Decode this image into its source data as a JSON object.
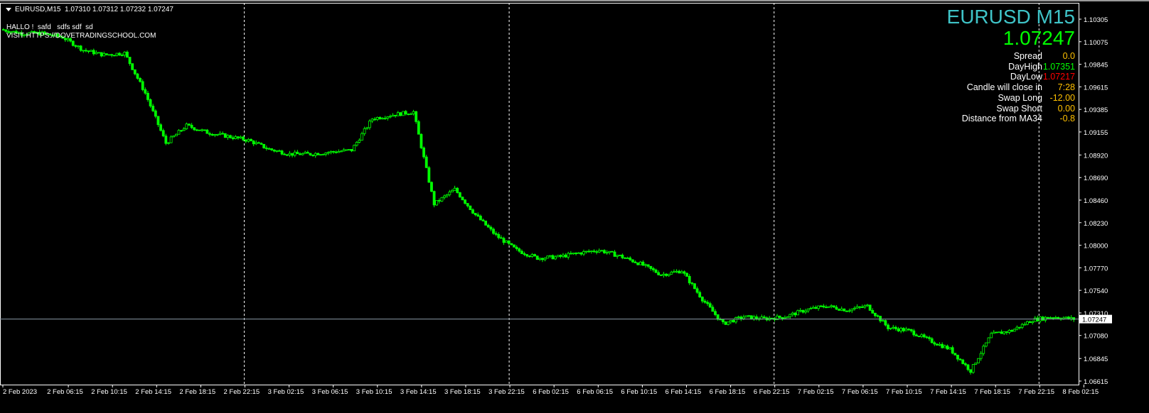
{
  "header": {
    "symbol_timeframe": "EURUSD,M15",
    "open": "1.07310",
    "high": "1.07312",
    "low": "1.07232",
    "close": "1.07247"
  },
  "notes": [
    "HALLO !  safd   sdfs sdf  sd",
    "VISIT HTTPS://DOVETRADINGSCHOOL.COM"
  ],
  "panel": {
    "title": "EURUSD M15",
    "price": "1.07247",
    "rows": [
      {
        "label": "Spread",
        "value": "0.0",
        "color": "#ffc000"
      },
      {
        "label": "DayHigh",
        "value": "1.07351",
        "color": "#00ff00"
      },
      {
        "label": "DayLow",
        "value": "1.07217",
        "color": "#ff0000"
      },
      {
        "label": "Candle will close in",
        "value": "7:28",
        "color": "#ffc000"
      },
      {
        "label": "Swap Long",
        "value": "-12.00",
        "color": "#ffc000"
      },
      {
        "label": "Swap Short",
        "value": "0.00",
        "color": "#ffc000"
      },
      {
        "label": "Distance from MA34",
        "value": "-0.8",
        "color": "#ffc000"
      }
    ]
  },
  "chart_data": {
    "type": "candlestick",
    "candle_color": "#00ff00",
    "background": "#000000",
    "current_price": 1.07247,
    "current_price_label": "1.07247",
    "ylim": [
      1.06615,
      1.10305
    ],
    "y_ticks": [
      "1.10305",
      "1.10075",
      "1.09845",
      "1.09615",
      "1.09385",
      "1.09155",
      "1.08920",
      "1.08690",
      "1.08460",
      "1.08230",
      "1.08000",
      "1.07770",
      "1.07540",
      "1.07310",
      "1.07080",
      "1.06845",
      "1.06615"
    ],
    "x_ticks": [
      "2 Feb 2023",
      "2 Feb 06:15",
      "2 Feb 10:15",
      "2 Feb 14:15",
      "2 Feb 18:15",
      "2 Feb 22:15",
      "3 Feb 02:15",
      "3 Feb 06:15",
      "3 Feb 10:15",
      "3 Feb 14:15",
      "3 Feb 18:15",
      "3 Feb 22:15",
      "6 Feb 02:15",
      "6 Feb 06:15",
      "6 Feb 10:15",
      "6 Feb 14:15",
      "6 Feb 18:15",
      "6 Feb 22:15",
      "7 Feb 02:15",
      "7 Feb 06:15",
      "7 Feb 10:15",
      "7 Feb 14:15",
      "7 Feb 18:15",
      "7 Feb 22:15",
      "8 Feb 02:15"
    ],
    "day_separators": [
      "2 Feb 22:15",
      "3 Feb 22:15",
      "6 Feb 22:15",
      "7 Feb 22:15"
    ],
    "approx_close_every_2h": [
      1.102,
      1.1016,
      1.1016,
      1.1012,
      1.0999,
      1.0994,
      1.0996,
      1.0955,
      1.0904,
      1.0922,
      1.0915,
      1.0911,
      1.0907,
      1.0898,
      1.0893,
      1.0893,
      1.0895,
      1.0897,
      1.0929,
      1.0933,
      1.0936,
      1.0842,
      1.0857,
      1.0831,
      1.081,
      1.0795,
      1.0787,
      1.0788,
      1.0792,
      1.0795,
      1.0789,
      1.0781,
      1.077,
      1.0774,
      1.0745,
      1.072,
      1.0727,
      1.0725,
      1.0727,
      1.0734,
      1.0738,
      1.0734,
      1.0738,
      1.0716,
      1.0713,
      1.0703,
      1.0694,
      1.0672,
      1.0709,
      1.0713,
      1.0724,
      1.0727,
      1.07247
    ]
  }
}
